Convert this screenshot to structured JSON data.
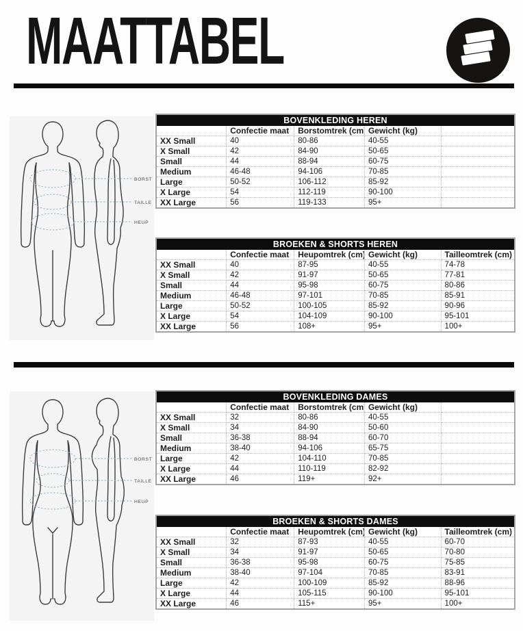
{
  "page": {
    "title": "MAATTABEL"
  },
  "logo": {
    "icon": "three-bars-brand-logo-icon"
  },
  "colors": {
    "c_rule": "#0b0b0b",
    "c_header_bg": "#0d0d0d",
    "c_header_fg": "#ffffff",
    "c_tborder": "#a3a3a3",
    "c_grid": "#b5b5b5",
    "c_text": "#1c1c1c",
    "c_panel": "#f4f4f4",
    "c_outline": "#3c3c3c",
    "c_dash": "#8fb0bd"
  },
  "figure_labels": [
    "BORST",
    "TAILLE",
    "HEUP"
  ],
  "tables": [
    {
      "title": "BOVENKLEDING HEREN",
      "columns": [
        "",
        "Confectie maat",
        "Borstomtrek (cm)",
        "Gewicht (kg)",
        ""
      ],
      "rows": [
        [
          "XX Small",
          "40",
          "80-86",
          "40-55",
          ""
        ],
        [
          "X Small",
          "42",
          "84-90",
          "50-65",
          ""
        ],
        [
          "Small",
          "44",
          "88-94",
          "60-75",
          ""
        ],
        [
          "Medium",
          "46-48",
          "94-106",
          "70-85",
          ""
        ],
        [
          "Large",
          "50-52",
          "106-112",
          "85-92",
          ""
        ],
        [
          "X Large",
          "54",
          "112-119",
          "90-100",
          ""
        ],
        [
          "XX Large",
          "56",
          "119-133",
          "95+",
          ""
        ]
      ]
    },
    {
      "title": "BROEKEN & SHORTS HEREN",
      "columns": [
        "",
        "Confectie maat",
        "Heupomtrek (cm)",
        "Gewicht (kg)",
        "Tailleomtrek (cm)"
      ],
      "rows": [
        [
          "XX Small",
          "40",
          "87-95",
          "40-55",
          "74-78"
        ],
        [
          "X Small",
          "42",
          "91-97",
          "50-65",
          "77-81"
        ],
        [
          "Small",
          "44",
          "95-98",
          "60-75",
          "80-86"
        ],
        [
          "Medium",
          "46-48",
          "97-101",
          "70-85",
          "85-91"
        ],
        [
          "Large",
          "50-52",
          "100-105",
          "85-92",
          "90-96"
        ],
        [
          "X Large",
          "54",
          "104-109",
          "90-100",
          "95-101"
        ],
        [
          "XX Large",
          "56",
          "108+",
          "95+",
          "100+"
        ]
      ]
    },
    {
      "title": "BOVENKLEDING DAMES",
      "columns": [
        "",
        "Confectie maat",
        "Borstomtrek (cm)",
        "Gewicht (kg)",
        ""
      ],
      "rows": [
        [
          "XX Small",
          "32",
          "80-86",
          "40-55",
          ""
        ],
        [
          "X Small",
          "34",
          "84-90",
          "50-60",
          ""
        ],
        [
          "Small",
          "36-38",
          "88-94",
          "60-70",
          ""
        ],
        [
          "Medium",
          "38-40",
          "94-106",
          "65-75",
          ""
        ],
        [
          "Large",
          "42",
          "104-110",
          "70-85",
          ""
        ],
        [
          "X Large",
          "44",
          "110-119",
          "82-92",
          ""
        ],
        [
          "XX Large",
          "46",
          "119+",
          "92+",
          ""
        ]
      ]
    },
    {
      "title": "BROEKEN & SHORTS DAMES",
      "columns": [
        "",
        "Confectie maat",
        "Heupomtrek (cm)",
        "Gewicht (kg)",
        "Tailleomtrek (cm)"
      ],
      "rows": [
        [
          "XX Small",
          "32",
          "87-93",
          "40-55",
          "60-70"
        ],
        [
          "X Small",
          "34",
          "91-97",
          "50-65",
          "70-80"
        ],
        [
          "Small",
          "36-38",
          "95-98",
          "60-75",
          "75-85"
        ],
        [
          "Medium",
          "38-40",
          "97-104",
          "70-85",
          "83-91"
        ],
        [
          "Large",
          "42",
          "100-109",
          "85-92",
          "88-96"
        ],
        [
          "X Large",
          "44",
          "105-115",
          "90-100",
          "95-101"
        ],
        [
          "XX Large",
          "46",
          "115+",
          "95+",
          "100+"
        ]
      ]
    }
  ]
}
